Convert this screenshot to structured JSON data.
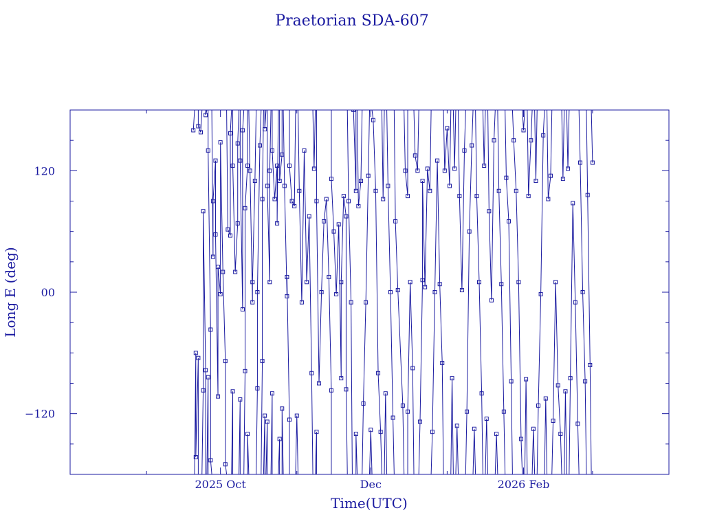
{
  "chart_data": {
    "type": "scatter",
    "title": "Praetorian SDA-607",
    "xlabel": "Time(UTC)",
    "ylabel": "Long E (deg)",
    "x_tick_labels": [
      {
        "date": "2025-10-01",
        "label": "2025 Oct"
      },
      {
        "date": "2025-12-01",
        "label": "Dec"
      },
      {
        "date": "2026-02-01",
        "label": "2026 Feb"
      }
    ],
    "y_ticks": [
      {
        "value": -120,
        "label": "−120"
      },
      {
        "value": 0,
        "label": "00"
      },
      {
        "value": 120,
        "label": "120"
      }
    ],
    "xlim": [
      "2025-08-01",
      "2026-04-01"
    ],
    "ylim": [
      -180,
      180
    ],
    "color": "#1a1aa0",
    "series": [
      {
        "points": [
          [
            "2025-09-20",
            160
          ],
          [
            "2025-09-21",
            -60
          ],
          [
            "2025-09-21",
            -163
          ],
          [
            "2025-09-22",
            -65
          ],
          [
            "2025-09-22",
            164
          ],
          [
            "2025-09-23",
            158
          ],
          [
            "2025-09-24",
            -97
          ],
          [
            "2025-09-24",
            80
          ],
          [
            "2025-09-25",
            -77
          ],
          [
            "2025-09-25",
            175
          ],
          [
            "2025-09-26",
            -84
          ],
          [
            "2025-09-26",
            140
          ],
          [
            "2025-09-27",
            -37
          ],
          [
            "2025-09-27",
            -166
          ],
          [
            "2025-09-28",
            35
          ],
          [
            "2025-09-28",
            90
          ],
          [
            "2025-09-29",
            130
          ],
          [
            "2025-09-29",
            57
          ],
          [
            "2025-09-30",
            -103
          ],
          [
            "2025-09-30",
            25
          ],
          [
            "2025-10-01",
            -2
          ],
          [
            "2025-10-01",
            148
          ],
          [
            "2025-10-02",
            20
          ],
          [
            "2025-10-03",
            -68
          ],
          [
            "2025-10-03",
            -170
          ],
          [
            "2025-10-04",
            62
          ],
          [
            "2025-10-05",
            56
          ],
          [
            "2025-10-05",
            157
          ],
          [
            "2025-10-06",
            -98
          ],
          [
            "2025-10-06",
            125
          ],
          [
            "2025-10-07",
            20
          ],
          [
            "2025-10-08",
            68
          ],
          [
            "2025-10-08",
            147
          ],
          [
            "2025-10-09",
            -106
          ],
          [
            "2025-10-09",
            130
          ],
          [
            "2025-10-10",
            -17
          ],
          [
            "2025-10-10",
            160
          ],
          [
            "2025-10-11",
            -78
          ],
          [
            "2025-10-11",
            83
          ],
          [
            "2025-10-12",
            125
          ],
          [
            "2025-10-12",
            -140
          ],
          [
            "2025-10-13",
            120
          ],
          [
            "2025-10-14",
            -10
          ],
          [
            "2025-10-14",
            10
          ],
          [
            "2025-10-15",
            110
          ],
          [
            "2025-10-16",
            -95
          ],
          [
            "2025-10-16",
            0
          ],
          [
            "2025-10-17",
            145
          ],
          [
            "2025-10-18",
            -68
          ],
          [
            "2025-10-18",
            92
          ],
          [
            "2025-10-19",
            -122
          ],
          [
            "2025-10-19",
            161
          ],
          [
            "2025-10-20",
            -128
          ],
          [
            "2025-10-20",
            105
          ],
          [
            "2025-10-21",
            10
          ],
          [
            "2025-10-21",
            120
          ],
          [
            "2025-10-22",
            -100
          ],
          [
            "2025-10-22",
            140
          ],
          [
            "2025-10-23",
            92
          ],
          [
            "2025-10-24",
            125
          ],
          [
            "2025-10-24",
            68
          ],
          [
            "2025-10-25",
            -145
          ],
          [
            "2025-10-25",
            110
          ],
          [
            "2025-10-26",
            136
          ],
          [
            "2025-10-26",
            -115
          ],
          [
            "2025-10-27",
            105
          ],
          [
            "2025-10-28",
            -4
          ],
          [
            "2025-10-28",
            15
          ],
          [
            "2025-10-29",
            -126
          ],
          [
            "2025-10-29",
            125
          ],
          [
            "2025-10-30",
            90
          ],
          [
            "2025-10-31",
            85
          ],
          [
            "2025-11-01",
            -122
          ],
          [
            "2025-11-02",
            100
          ],
          [
            "2025-11-03",
            -10
          ],
          [
            "2025-11-04",
            140
          ],
          [
            "2025-11-05",
            10
          ],
          [
            "2025-11-06",
            75
          ],
          [
            "2025-11-07",
            -80
          ],
          [
            "2025-11-08",
            122
          ],
          [
            "2025-11-09",
            -138
          ],
          [
            "2025-11-09",
            90
          ],
          [
            "2025-11-10",
            -90
          ],
          [
            "2025-11-11",
            0
          ],
          [
            "2025-11-12",
            70
          ],
          [
            "2025-11-13",
            92
          ],
          [
            "2025-11-14",
            15
          ],
          [
            "2025-11-15",
            -97
          ],
          [
            "2025-11-15",
            112
          ],
          [
            "2025-11-16",
            60
          ],
          [
            "2025-11-17",
            -2
          ],
          [
            "2025-11-18",
            67
          ],
          [
            "2025-11-19",
            -85
          ],
          [
            "2025-11-19",
            10
          ],
          [
            "2025-11-20",
            95
          ],
          [
            "2025-11-21",
            75
          ],
          [
            "2025-11-21",
            -96
          ],
          [
            "2025-11-22",
            90
          ],
          [
            "2025-11-23",
            -10
          ],
          [
            "2025-11-24",
            180
          ],
          [
            "2025-11-25",
            100
          ],
          [
            "2025-11-25",
            -140
          ],
          [
            "2025-11-26",
            85
          ],
          [
            "2025-11-27",
            110
          ],
          [
            "2025-11-28",
            -110
          ],
          [
            "2025-11-29",
            -10
          ],
          [
            "2025-11-30",
            115
          ],
          [
            "2025-12-01",
            -136
          ],
          [
            "2025-12-02",
            170
          ],
          [
            "2025-12-03",
            100
          ],
          [
            "2025-12-04",
            -80
          ],
          [
            "2025-12-05",
            -138
          ],
          [
            "2025-12-06",
            92
          ],
          [
            "2025-12-07",
            -100
          ],
          [
            "2025-12-08",
            105
          ],
          [
            "2025-12-09",
            0
          ],
          [
            "2025-12-10",
            -124
          ],
          [
            "2025-12-11",
            70
          ],
          [
            "2025-12-12",
            2
          ],
          [
            "2025-12-14",
            -112
          ],
          [
            "2025-12-15",
            120
          ],
          [
            "2025-12-16",
            95
          ],
          [
            "2025-12-16",
            -118
          ],
          [
            "2025-12-17",
            10
          ],
          [
            "2025-12-18",
            -75
          ],
          [
            "2025-12-19",
            135
          ],
          [
            "2025-12-20",
            120
          ],
          [
            "2025-12-21",
            -128
          ],
          [
            "2025-12-22",
            12
          ],
          [
            "2025-12-22",
            110
          ],
          [
            "2025-12-23",
            5
          ],
          [
            "2025-12-24",
            122
          ],
          [
            "2025-12-25",
            100
          ],
          [
            "2025-12-26",
            -138
          ],
          [
            "2025-12-27",
            0
          ],
          [
            "2025-12-28",
            130
          ],
          [
            "2025-12-29",
            8
          ],
          [
            "2025-12-30",
            -70
          ],
          [
            "2025-12-31",
            120
          ],
          [
            "2026-01-01",
            162
          ],
          [
            "2026-01-02",
            105
          ],
          [
            "2026-01-03",
            -85
          ],
          [
            "2026-01-04",
            122
          ],
          [
            "2026-01-05",
            -132
          ],
          [
            "2026-01-06",
            95
          ],
          [
            "2026-01-07",
            2
          ],
          [
            "2026-01-08",
            140
          ],
          [
            "2026-01-09",
            -118
          ],
          [
            "2026-01-10",
            60
          ],
          [
            "2026-01-11",
            145
          ],
          [
            "2026-01-12",
            -135
          ],
          [
            "2026-01-13",
            95
          ],
          [
            "2026-01-14",
            10
          ],
          [
            "2026-01-15",
            -100
          ],
          [
            "2026-01-16",
            125
          ],
          [
            "2026-01-17",
            -125
          ],
          [
            "2026-01-18",
            80
          ],
          [
            "2026-01-19",
            -8
          ],
          [
            "2026-01-20",
            150
          ],
          [
            "2026-01-21",
            -140
          ],
          [
            "2026-01-22",
            100
          ],
          [
            "2026-01-23",
            8
          ],
          [
            "2026-01-24",
            -118
          ],
          [
            "2026-01-25",
            113
          ],
          [
            "2026-01-26",
            70
          ],
          [
            "2026-01-27",
            -88
          ],
          [
            "2026-01-28",
            150
          ],
          [
            "2026-01-29",
            100
          ],
          [
            "2026-01-30",
            10
          ],
          [
            "2026-01-31",
            -145
          ],
          [
            "2026-02-01",
            160
          ],
          [
            "2026-02-02",
            -86
          ],
          [
            "2026-02-03",
            95
          ],
          [
            "2026-02-04",
            150
          ],
          [
            "2026-02-05",
            -135
          ],
          [
            "2026-02-06",
            110
          ],
          [
            "2026-02-07",
            -112
          ],
          [
            "2026-02-08",
            -2
          ],
          [
            "2026-02-09",
            155
          ],
          [
            "2026-02-10",
            -105
          ],
          [
            "2026-02-11",
            92
          ],
          [
            "2026-02-12",
            115
          ],
          [
            "2026-02-13",
            -127
          ],
          [
            "2026-02-14",
            10
          ],
          [
            "2026-02-15",
            -92
          ],
          [
            "2026-02-16",
            -140
          ],
          [
            "2026-02-17",
            112
          ],
          [
            "2026-02-18",
            -98
          ],
          [
            "2026-02-19",
            122
          ],
          [
            "2026-02-20",
            -85
          ],
          [
            "2026-02-21",
            88
          ],
          [
            "2026-02-22",
            -10
          ],
          [
            "2026-02-23",
            -130
          ],
          [
            "2026-02-24",
            128
          ],
          [
            "2026-02-25",
            0
          ],
          [
            "2026-02-26",
            -88
          ],
          [
            "2026-02-27",
            96
          ],
          [
            "2026-02-28",
            -72
          ],
          [
            "2026-03-01",
            128
          ]
        ]
      }
    ]
  }
}
